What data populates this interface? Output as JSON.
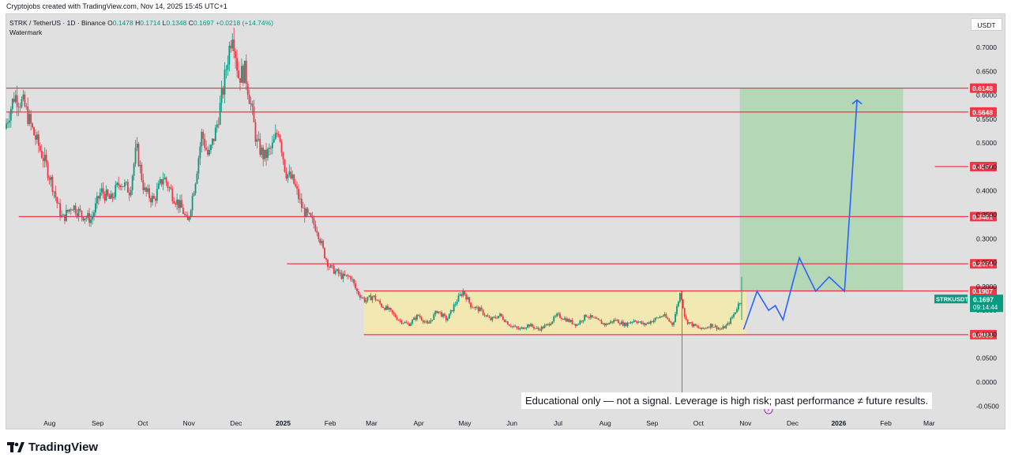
{
  "caption": "Cryptojobs created with TradingView.com, Nov 14, 2025 15:45 UTC+1",
  "legend": {
    "symbol": "STRK / TetherUS · 1D · Binance",
    "o_label": "O",
    "o": "0.1478",
    "h_label": "H",
    "h": "0.1714",
    "l_label": "L",
    "l": "0.1348",
    "c_label": "C",
    "c": "0.1697",
    "change": "+0.0218 (+14.74%)",
    "watermark": "Watermark"
  },
  "currency": "USDT",
  "brand": "TradingView",
  "disclaimer": "Educational only — not a signal. Leverage is high risk; past performance ≠ future results.",
  "colors": {
    "up": "#089981",
    "down": "#f23645",
    "level": "#f23645",
    "projection": "#2962ff",
    "zone_fill": "#f5e9a8",
    "target_fill": "#a5d6a7",
    "current": "#089981"
  },
  "chart_data": {
    "type": "candlestick",
    "ylim": [
      -0.05,
      0.75
    ],
    "y_ticks": [
      "0.7000",
      "0.6500",
      "0.6000",
      "0.5500",
      "0.5000",
      "0.4500",
      "0.4000",
      "0.3500",
      "0.3000",
      "0.2500",
      "0.2000",
      "0.1500",
      "0.1000",
      "0.0500",
      "0.0000",
      "-0.0500"
    ],
    "y_tick_values": [
      0.7,
      0.65,
      0.6,
      0.55,
      0.5,
      0.45,
      0.4,
      0.35,
      0.3,
      0.25,
      0.2,
      0.15,
      0.1,
      0.05,
      0.0,
      -0.05
    ],
    "x_ticks": [
      {
        "label": "Aug",
        "t": 0.045
      },
      {
        "label": "Sep",
        "t": 0.095
      },
      {
        "label": "Oct",
        "t": 0.142
      },
      {
        "label": "Nov",
        "t": 0.19
      },
      {
        "label": "Dec",
        "t": 0.239
      },
      {
        "label": "2025",
        "t": 0.288
      },
      {
        "label": "Feb",
        "t": 0.337
      },
      {
        "label": "Mar",
        "t": 0.38
      },
      {
        "label": "Apr",
        "t": 0.429
      },
      {
        "label": "May",
        "t": 0.477
      },
      {
        "label": "Jun",
        "t": 0.526
      },
      {
        "label": "Jul",
        "t": 0.574
      },
      {
        "label": "Aug",
        "t": 0.623
      },
      {
        "label": "Sep",
        "t": 0.672
      },
      {
        "label": "Oct",
        "t": 0.72
      },
      {
        "label": "Nov",
        "t": 0.769
      },
      {
        "label": "Dec",
        "t": 0.818
      },
      {
        "label": "2026",
        "t": 0.866
      },
      {
        "label": "Feb",
        "t": 0.915
      },
      {
        "label": "Mar",
        "t": 0.96
      }
    ],
    "levels": [
      {
        "value": 0.6148,
        "label": "0.6148"
      },
      {
        "value": 0.5648,
        "label": "0.5648"
      },
      {
        "value": 0.4507,
        "label": "0.4507"
      },
      {
        "value": 0.3461,
        "label": "0.3461"
      },
      {
        "value": 0.2474,
        "label": "0.2474"
      },
      {
        "value": 0.1907,
        "label": "0.1907"
      },
      {
        "value": 0.0993,
        "label": "0.0993"
      }
    ],
    "current_price": {
      "symbol": "STRKUSDT",
      "price": 0.1697,
      "price_label": "0.1697",
      "countdown": "09:14:44"
    },
    "price_path": [
      [
        0.0,
        0.53
      ],
      [
        0.01,
        0.6
      ],
      [
        0.02,
        0.58
      ],
      [
        0.03,
        0.52
      ],
      [
        0.04,
        0.47
      ],
      [
        0.05,
        0.41
      ],
      [
        0.055,
        0.37
      ],
      [
        0.06,
        0.34
      ],
      [
        0.07,
        0.37
      ],
      [
        0.08,
        0.35
      ],
      [
        0.09,
        0.34
      ],
      [
        0.1,
        0.4
      ],
      [
        0.11,
        0.38
      ],
      [
        0.12,
        0.42
      ],
      [
        0.13,
        0.4
      ],
      [
        0.137,
        0.49
      ],
      [
        0.145,
        0.4
      ],
      [
        0.155,
        0.38
      ],
      [
        0.165,
        0.43
      ],
      [
        0.175,
        0.39
      ],
      [
        0.185,
        0.36
      ],
      [
        0.19,
        0.33
      ],
      [
        0.198,
        0.42
      ],
      [
        0.205,
        0.52
      ],
      [
        0.212,
        0.47
      ],
      [
        0.22,
        0.53
      ],
      [
        0.227,
        0.61
      ],
      [
        0.232,
        0.68
      ],
      [
        0.237,
        0.74
      ],
      [
        0.243,
        0.64
      ],
      [
        0.25,
        0.65
      ],
      [
        0.256,
        0.58
      ],
      [
        0.262,
        0.5
      ],
      [
        0.27,
        0.47
      ],
      [
        0.278,
        0.49
      ],
      [
        0.285,
        0.53
      ],
      [
        0.292,
        0.44
      ],
      [
        0.3,
        0.42
      ],
      [
        0.31,
        0.36
      ],
      [
        0.318,
        0.34
      ],
      [
        0.325,
        0.32
      ],
      [
        0.332,
        0.27
      ],
      [
        0.338,
        0.24
      ],
      [
        0.345,
        0.23
      ],
      [
        0.352,
        0.22
      ],
      [
        0.36,
        0.22
      ],
      [
        0.366,
        0.19
      ],
      [
        0.375,
        0.17
      ],
      [
        0.383,
        0.18
      ],
      [
        0.392,
        0.16
      ],
      [
        0.4,
        0.15
      ],
      [
        0.41,
        0.13
      ],
      [
        0.42,
        0.12
      ],
      [
        0.43,
        0.14
      ],
      [
        0.44,
        0.12
      ],
      [
        0.45,
        0.15
      ],
      [
        0.46,
        0.13
      ],
      [
        0.47,
        0.17
      ],
      [
        0.477,
        0.19
      ],
      [
        0.485,
        0.16
      ],
      [
        0.495,
        0.15
      ],
      [
        0.505,
        0.13
      ],
      [
        0.515,
        0.14
      ],
      [
        0.525,
        0.12
      ],
      [
        0.535,
        0.11
      ],
      [
        0.545,
        0.12
      ],
      [
        0.555,
        0.11
      ],
      [
        0.565,
        0.12
      ],
      [
        0.575,
        0.14
      ],
      [
        0.585,
        0.13
      ],
      [
        0.595,
        0.12
      ],
      [
        0.605,
        0.14
      ],
      [
        0.615,
        0.13
      ],
      [
        0.625,
        0.12
      ],
      [
        0.635,
        0.13
      ],
      [
        0.645,
        0.12
      ],
      [
        0.655,
        0.13
      ],
      [
        0.665,
        0.12
      ],
      [
        0.675,
        0.13
      ],
      [
        0.685,
        0.14
      ],
      [
        0.695,
        0.12
      ],
      [
        0.703,
        0.19
      ],
      [
        0.708,
        0.13
      ],
      [
        0.715,
        0.12
      ],
      [
        0.725,
        0.11
      ],
      [
        0.735,
        0.12
      ],
      [
        0.745,
        0.11
      ],
      [
        0.752,
        0.12
      ],
      [
        0.758,
        0.14
      ],
      [
        0.765,
        0.17
      ]
    ],
    "projection": [
      [
        0.767,
        0.11
      ],
      [
        0.781,
        0.19
      ],
      [
        0.793,
        0.15
      ],
      [
        0.8,
        0.16
      ],
      [
        0.808,
        0.13
      ],
      [
        0.825,
        0.26
      ],
      [
        0.842,
        0.19
      ],
      [
        0.856,
        0.22
      ],
      [
        0.872,
        0.19
      ],
      [
        0.885,
        0.59
      ]
    ],
    "range_zone": {
      "t0": 0.372,
      "t1": 0.77,
      "low": 0.0993,
      "high": 0.1907
    },
    "target_zone": {
      "t0": 0.763,
      "t1": 0.933,
      "low": 0.1907,
      "high": 0.6148
    }
  }
}
